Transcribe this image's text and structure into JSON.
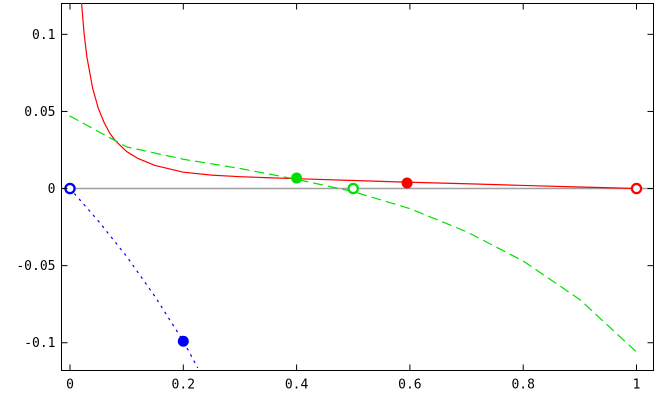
{
  "chart_data": {
    "type": "line",
    "title": "",
    "xlabel": "",
    "ylabel": "",
    "xlim": [
      -0.015,
      1.03
    ],
    "ylim": [
      -0.118,
      0.12
    ],
    "grid": false,
    "legend": "none",
    "x_ticks": [
      {
        "value": 0,
        "label": "0"
      },
      {
        "value": 0.2,
        "label": "0.2"
      },
      {
        "value": 0.4,
        "label": "0.4"
      },
      {
        "value": 0.6,
        "label": "0.6"
      },
      {
        "value": 0.8,
        "label": "0.8"
      },
      {
        "value": 1,
        "label": "1"
      }
    ],
    "y_ticks": [
      {
        "value": 0.1,
        "label": "0.1"
      },
      {
        "value": 0.05,
        "label": "0.05"
      },
      {
        "value": 0,
        "label": "0"
      },
      {
        "value": -0.05,
        "label": "-0.05"
      },
      {
        "value": -0.1,
        "label": "-0.1"
      }
    ],
    "baseline": {
      "y": 0,
      "color": "#a0a0a0"
    },
    "series": [
      {
        "style": "solid",
        "color": "#ff0000",
        "x": [
          0.0205,
          0.025,
          0.03,
          0.04,
          0.05,
          0.06,
          0.07,
          0.08,
          0.1,
          0.12,
          0.15,
          0.2,
          0.25,
          0.3,
          0.35,
          0.4,
          0.5,
          0.6,
          0.7,
          0.8,
          0.9,
          0.95,
          1.0
        ],
        "y": [
          0.12,
          0.1,
          0.085,
          0.065,
          0.052,
          0.043,
          0.036,
          0.031,
          0.024,
          0.0195,
          0.015,
          0.0106,
          0.0087,
          0.0077,
          0.007,
          0.0064,
          0.0052,
          0.0041,
          0.0031,
          0.002,
          0.001,
          0.0005,
          0.0
        ]
      },
      {
        "style": "dashed",
        "color": "#00e000",
        "x": [
          0.0,
          0.1,
          0.2,
          0.3,
          0.4,
          0.5,
          0.6,
          0.7,
          0.8,
          0.9,
          1.0
        ],
        "y": [
          0.047,
          0.027,
          0.019,
          0.013,
          0.006,
          -0.002,
          -0.013,
          -0.028,
          -0.047,
          -0.072,
          -0.106
        ]
      },
      {
        "style": "dotted",
        "color": "#0000ff",
        "x": [
          0.0,
          0.05,
          0.1,
          0.15,
          0.2,
          0.225
        ],
        "y": [
          0.0,
          -0.021,
          -0.044,
          -0.07,
          -0.099,
          -0.116
        ]
      }
    ],
    "markers": [
      {
        "x": 0.0,
        "y": 0.0,
        "color": "#0000ff",
        "filled": false
      },
      {
        "x": 0.2,
        "y": -0.099,
        "color": "#0000ff",
        "filled": true
      },
      {
        "x": 0.4,
        "y": 0.0068,
        "color": "#00e000",
        "filled": true
      },
      {
        "x": 0.5,
        "y": 0.0,
        "color": "#00e000",
        "filled": false
      },
      {
        "x": 0.595,
        "y": 0.0036,
        "color": "#ff0000",
        "filled": true
      },
      {
        "x": 1.0,
        "y": 0.0,
        "color": "#ff0000",
        "filled": false
      }
    ]
  }
}
